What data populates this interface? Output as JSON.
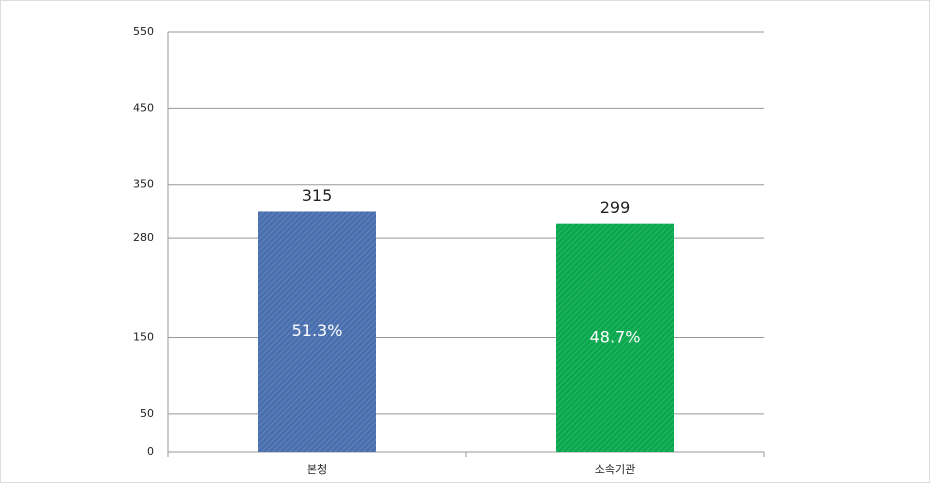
{
  "chart_data": {
    "type": "bar",
    "categories": [
      "본청",
      "소속기관"
    ],
    "values": [
      315,
      299
    ],
    "percent_labels": [
      "51.3%",
      "48.7%"
    ],
    "colors": [
      "#4a6fae",
      "#0aa84e"
    ],
    "ylim": [
      0,
      550
    ],
    "yticks": [
      0,
      50,
      150,
      280,
      350,
      450,
      550
    ],
    "grid": true
  }
}
